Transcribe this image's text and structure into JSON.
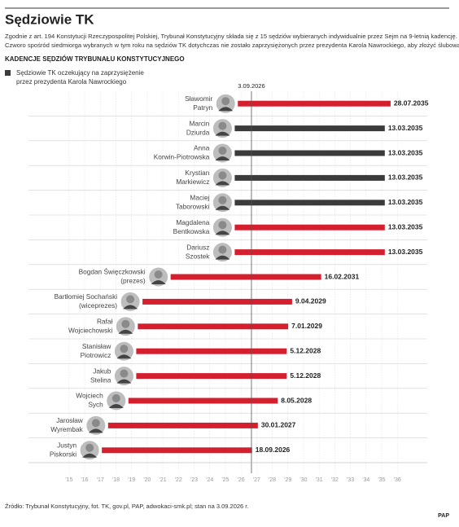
{
  "chart_data": {
    "type": "timeline",
    "title": "Sędziowie TK",
    "intro": [
      "Zgodnie z art. 194 Konstytucji Rzeczypospolitej Polskiej, Trybunał Konstytucyjny składa się z 15 sędziów wybieranych indywidualnie przez Sejm na 9-letnią kadencję.",
      "Czworo spośród siedmiorga wybranych w tym roku na sędziów TK dotychczas nie zostało zaprzysiężonych przez prezydenta Karola Nawrockiego, aby złożyć ślubowanie."
    ],
    "subtitle": "KADENCJE SĘDZIÓW TRYBUNAŁU KONSTYTUCYJNEGO",
    "legend": {
      "label": [
        "Sędziowie TK oczekujący na zaprzysiężenie",
        "przez prezydenta Karola Nawrockiego"
      ],
      "color": "#3b3b3b"
    },
    "color": "#d4202e",
    "reference": {
      "value": 2026.67,
      "label": "3.09.2026"
    },
    "judges": [
      {
        "name": [
          "Sławomir",
          "Patryn"
        ],
        "start": 2025.8,
        "end": 2035.57,
        "end_label": "28.07.2035",
        "waiting": false
      },
      {
        "name": [
          "Marcin",
          "Dziurda"
        ],
        "start": 2025.6,
        "end": 2035.2,
        "end_label": "13.03.2035",
        "waiting": true
      },
      {
        "name": [
          "Anna",
          "Korwin-Piotrowska"
        ],
        "start": 2025.6,
        "end": 2035.2,
        "end_label": "13.03.2035",
        "waiting": true
      },
      {
        "name": [
          "Krystian",
          "Markiewicz"
        ],
        "start": 2025.6,
        "end": 2035.2,
        "end_label": "13.03.2035",
        "waiting": true
      },
      {
        "name": [
          "Maciej",
          "Taborowski"
        ],
        "start": 2025.6,
        "end": 2035.2,
        "end_label": "13.03.2035",
        "waiting": true
      },
      {
        "name": [
          "Magdalena",
          "Bentkowska"
        ],
        "start": 2025.6,
        "end": 2035.2,
        "end_label": "13.03.2035",
        "waiting": false
      },
      {
        "name": [
          "Dariusz",
          "Szostek"
        ],
        "start": 2025.6,
        "end": 2035.2,
        "end_label": "13.03.2035",
        "waiting": false
      },
      {
        "name": [
          "Bogdan Święczkowski",
          "(prezes)"
        ],
        "start": 2021.5,
        "end": 2031.13,
        "end_label": "16.02.2031",
        "waiting": false
      },
      {
        "name": [
          "Bartłomiej Sochański",
          "(wiceprezes)"
        ],
        "start": 2019.7,
        "end": 2029.27,
        "end_label": "9.04.2029",
        "waiting": false
      },
      {
        "name": [
          "Rafał",
          "Wojciechowski"
        ],
        "start": 2019.4,
        "end": 2029.02,
        "end_label": "7.01.2029",
        "waiting": false
      },
      {
        "name": [
          "Stanisław",
          "Piotrowicz"
        ],
        "start": 2019.3,
        "end": 2028.93,
        "end_label": "5.12.2028",
        "waiting": false
      },
      {
        "name": [
          "Jakub",
          "Stelina"
        ],
        "start": 2019.3,
        "end": 2028.93,
        "end_label": "5.12.2028",
        "waiting": false
      },
      {
        "name": [
          "Wojciech",
          "Sych"
        ],
        "start": 2018.8,
        "end": 2028.35,
        "end_label": "8.05.2028",
        "waiting": false
      },
      {
        "name": [
          "Jarosław",
          "Wyrembak"
        ],
        "start": 2017.5,
        "end": 2027.08,
        "end_label": "30.01.2027",
        "waiting": false
      },
      {
        "name": [
          "Justyn",
          "Piskorski"
        ],
        "start": 2017.1,
        "end": 2026.71,
        "end_label": "18.09.2026",
        "waiting": false
      }
    ],
    "xlim": [
      2015,
      2037
    ],
    "xticks": [
      {
        "value": 2015,
        "label": "'15"
      },
      {
        "value": 2016,
        "label": "'16"
      },
      {
        "value": 2017,
        "label": "'17"
      },
      {
        "value": 2018,
        "label": "'18"
      },
      {
        "value": 2019,
        "label": "'19"
      },
      {
        "value": 2020,
        "label": "'20"
      },
      {
        "value": 2021,
        "label": "'21"
      },
      {
        "value": 2022,
        "label": "'22"
      },
      {
        "value": 2023,
        "label": "'23"
      },
      {
        "value": 2024,
        "label": "'24"
      },
      {
        "value": 2025,
        "label": "'25"
      },
      {
        "value": 2026,
        "label": "'26"
      },
      {
        "value": 2027,
        "label": "'27"
      },
      {
        "value": 2028,
        "label": "'28"
      },
      {
        "value": 2029,
        "label": "'29"
      },
      {
        "value": 2030,
        "label": "'30"
      },
      {
        "value": 2031,
        "label": "'31"
      },
      {
        "value": 2032,
        "label": "'32"
      },
      {
        "value": 2033,
        "label": "'33"
      },
      {
        "value": 2034,
        "label": "'34"
      },
      {
        "value": 2035,
        "label": "'35"
      },
      {
        "value": 2036,
        "label": "'36"
      }
    ],
    "source": "Źródło: Trybunał Konstytucyjny, fot. TK, gov.pl, PAP, adwokaci-smk.pl; stan na 3.09.2026 r.",
    "logo": "PAP"
  }
}
